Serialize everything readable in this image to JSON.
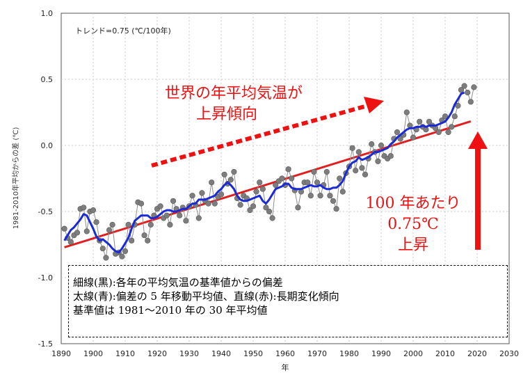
{
  "chart_data": {
    "type": "line",
    "title": "",
    "xlabel": "年",
    "ylabel": "1981-2010年平均からの差 (℃)",
    "xlim": [
      1890,
      2030
    ],
    "ylim": [
      -1.5,
      1.0
    ],
    "x_ticks": [
      "1890",
      "1900",
      "1910",
      "1920",
      "1930",
      "1940",
      "1950",
      "1960",
      "1970",
      "1980",
      "1990",
      "2000",
      "2010",
      "2020",
      "2030"
    ],
    "y_ticks": [
      "1.0",
      "0.5",
      "0.0",
      "-0.5",
      "-1.0",
      "-1.5"
    ],
    "trend_label": "トレンド=0.75 (℃/100年)",
    "colors": {
      "annual": "#8c8c8c",
      "moving_avg": "#1a2ad6",
      "trend": "#e02020",
      "annotation": "#ee1111"
    },
    "years": [
      1891,
      1892,
      1893,
      1894,
      1895,
      1896,
      1897,
      1898,
      1899,
      1900,
      1901,
      1902,
      1903,
      1904,
      1905,
      1906,
      1907,
      1908,
      1909,
      1910,
      1911,
      1912,
      1913,
      1914,
      1915,
      1916,
      1917,
      1918,
      1919,
      1920,
      1921,
      1922,
      1923,
      1924,
      1925,
      1926,
      1927,
      1928,
      1929,
      1930,
      1931,
      1932,
      1933,
      1934,
      1935,
      1936,
      1937,
      1938,
      1939,
      1940,
      1941,
      1942,
      1943,
      1944,
      1945,
      1946,
      1947,
      1948,
      1949,
      1950,
      1951,
      1952,
      1953,
      1954,
      1955,
      1956,
      1957,
      1958,
      1959,
      1960,
      1961,
      1962,
      1963,
      1964,
      1965,
      1966,
      1967,
      1968,
      1969,
      1970,
      1971,
      1972,
      1973,
      1974,
      1975,
      1976,
      1977,
      1978,
      1979,
      1980,
      1981,
      1982,
      1983,
      1984,
      1985,
      1986,
      1987,
      1988,
      1989,
      1990,
      1991,
      1992,
      1993,
      1994,
      1995,
      1996,
      1997,
      1998,
      1999,
      2000,
      2001,
      2002,
      2003,
      2004,
      2005,
      2006,
      2007,
      2008,
      2009,
      2010,
      2011,
      2012,
      2013,
      2014,
      2015,
      2016,
      2017,
      2018,
      2019
    ],
    "series": [
      {
        "values": [
          -0.63,
          -0.7,
          -0.73,
          -0.68,
          -0.66,
          -0.48,
          -0.47,
          -0.65,
          -0.5,
          -0.49,
          -0.58,
          -0.72,
          -0.78,
          -0.85,
          -0.64,
          -0.6,
          -0.82,
          -0.81,
          -0.84,
          -0.8,
          -0.6,
          -0.72,
          -0.6,
          -0.43,
          -0.44,
          -0.68,
          -0.72,
          -0.6,
          -0.53,
          -0.48,
          -0.46,
          -0.55,
          -0.53,
          -0.6,
          -0.42,
          -0.48,
          -0.53,
          -0.47,
          -0.57,
          -0.46,
          -0.38,
          -0.45,
          -0.55,
          -0.36,
          -0.42,
          -0.44,
          -0.28,
          -0.44,
          -0.39,
          -0.37,
          -0.22,
          -0.29,
          -0.26,
          -0.2,
          -0.4,
          -0.45,
          -0.38,
          -0.4,
          -0.49,
          -0.46,
          -0.35,
          -0.28,
          -0.33,
          -0.47,
          -0.5,
          -0.55,
          -0.3,
          -0.27,
          -0.25,
          -0.3,
          -0.18,
          -0.25,
          -0.34,
          -0.47,
          -0.35,
          -0.28,
          -0.28,
          -0.38,
          -0.2,
          -0.28,
          -0.38,
          -0.3,
          -0.2,
          -0.38,
          -0.42,
          -0.48,
          -0.25,
          -0.35,
          -0.21,
          -0.16,
          -0.02,
          -0.19,
          -0.05,
          -0.17,
          -0.22,
          -0.1,
          0.01,
          -0.05,
          -0.12,
          0.0,
          -0.08,
          -0.1,
          -0.08,
          0.05,
          0.1,
          0.05,
          0.08,
          0.25,
          0.15,
          0.06,
          0.12,
          0.18,
          0.14,
          0.12,
          0.18,
          0.15,
          0.13,
          0.1,
          0.19,
          0.22,
          0.1,
          0.14,
          0.22,
          0.3,
          0.42,
          0.45,
          0.4,
          0.33,
          0.44
        ]
      },
      {
        "values": [
          -0.72,
          -0.68,
          -0.64,
          -0.62,
          -0.59,
          -0.56,
          -0.52,
          -0.53,
          -0.58,
          -0.63,
          -0.69,
          -0.72,
          -0.71,
          -0.73,
          -0.75,
          -0.78,
          -0.8,
          -0.81,
          -0.78,
          -0.74,
          -0.7,
          -0.63,
          -0.57,
          -0.55,
          -0.53,
          -0.53,
          -0.53,
          -0.55,
          -0.55,
          -0.54,
          -0.52,
          -0.5,
          -0.49,
          -0.49,
          -0.5,
          -0.5,
          -0.49,
          -0.48,
          -0.48,
          -0.46,
          -0.44,
          -0.44,
          -0.41,
          -0.41,
          -0.41,
          -0.4,
          -0.39,
          -0.38,
          -0.35,
          -0.33,
          -0.3,
          -0.28,
          -0.3,
          -0.33,
          -0.38,
          -0.41,
          -0.42,
          -0.42,
          -0.41,
          -0.4,
          -0.39,
          -0.38,
          -0.42,
          -0.44,
          -0.41,
          -0.37,
          -0.33,
          -0.32,
          -0.31,
          -0.29,
          -0.29,
          -0.32,
          -0.33,
          -0.33,
          -0.33,
          -0.32,
          -0.31,
          -0.3,
          -0.31,
          -0.31,
          -0.3,
          -0.32,
          -0.33,
          -0.33,
          -0.32,
          -0.32,
          -0.3,
          -0.27,
          -0.21,
          -0.16,
          -0.13,
          -0.12,
          -0.09,
          -0.11,
          -0.1,
          -0.09,
          -0.07,
          -0.05,
          -0.05,
          -0.04,
          -0.03,
          -0.02,
          0.01,
          0.03,
          0.06,
          0.08,
          0.1,
          0.12,
          0.13,
          0.13,
          0.14,
          0.14,
          0.15,
          0.14,
          0.15,
          0.15,
          0.15,
          0.16,
          0.17,
          0.18,
          0.21,
          0.25,
          0.31,
          0.35,
          0.39,
          0.4
        ]
      },
      {
        "x": [
          1891,
          2018
        ],
        "values": [
          -0.771,
          0.182
        ]
      }
    ]
  },
  "annotations": {
    "rising_line1": "世界の年平均気温が",
    "rising_line2": "上昇傾向",
    "per_century_line1": "100 年あたり",
    "per_century_line2": "0.75℃",
    "per_century_line3": "上昇"
  },
  "note": {
    "line1": "細線(黒):各年の平均気温の基準値からの偏差",
    "line2": "太線(青):偏差の 5 年移動平均値、直線(赤):長期変化傾向",
    "line3": "基準値は 1981〜2010 年の 30 年平均値"
  }
}
